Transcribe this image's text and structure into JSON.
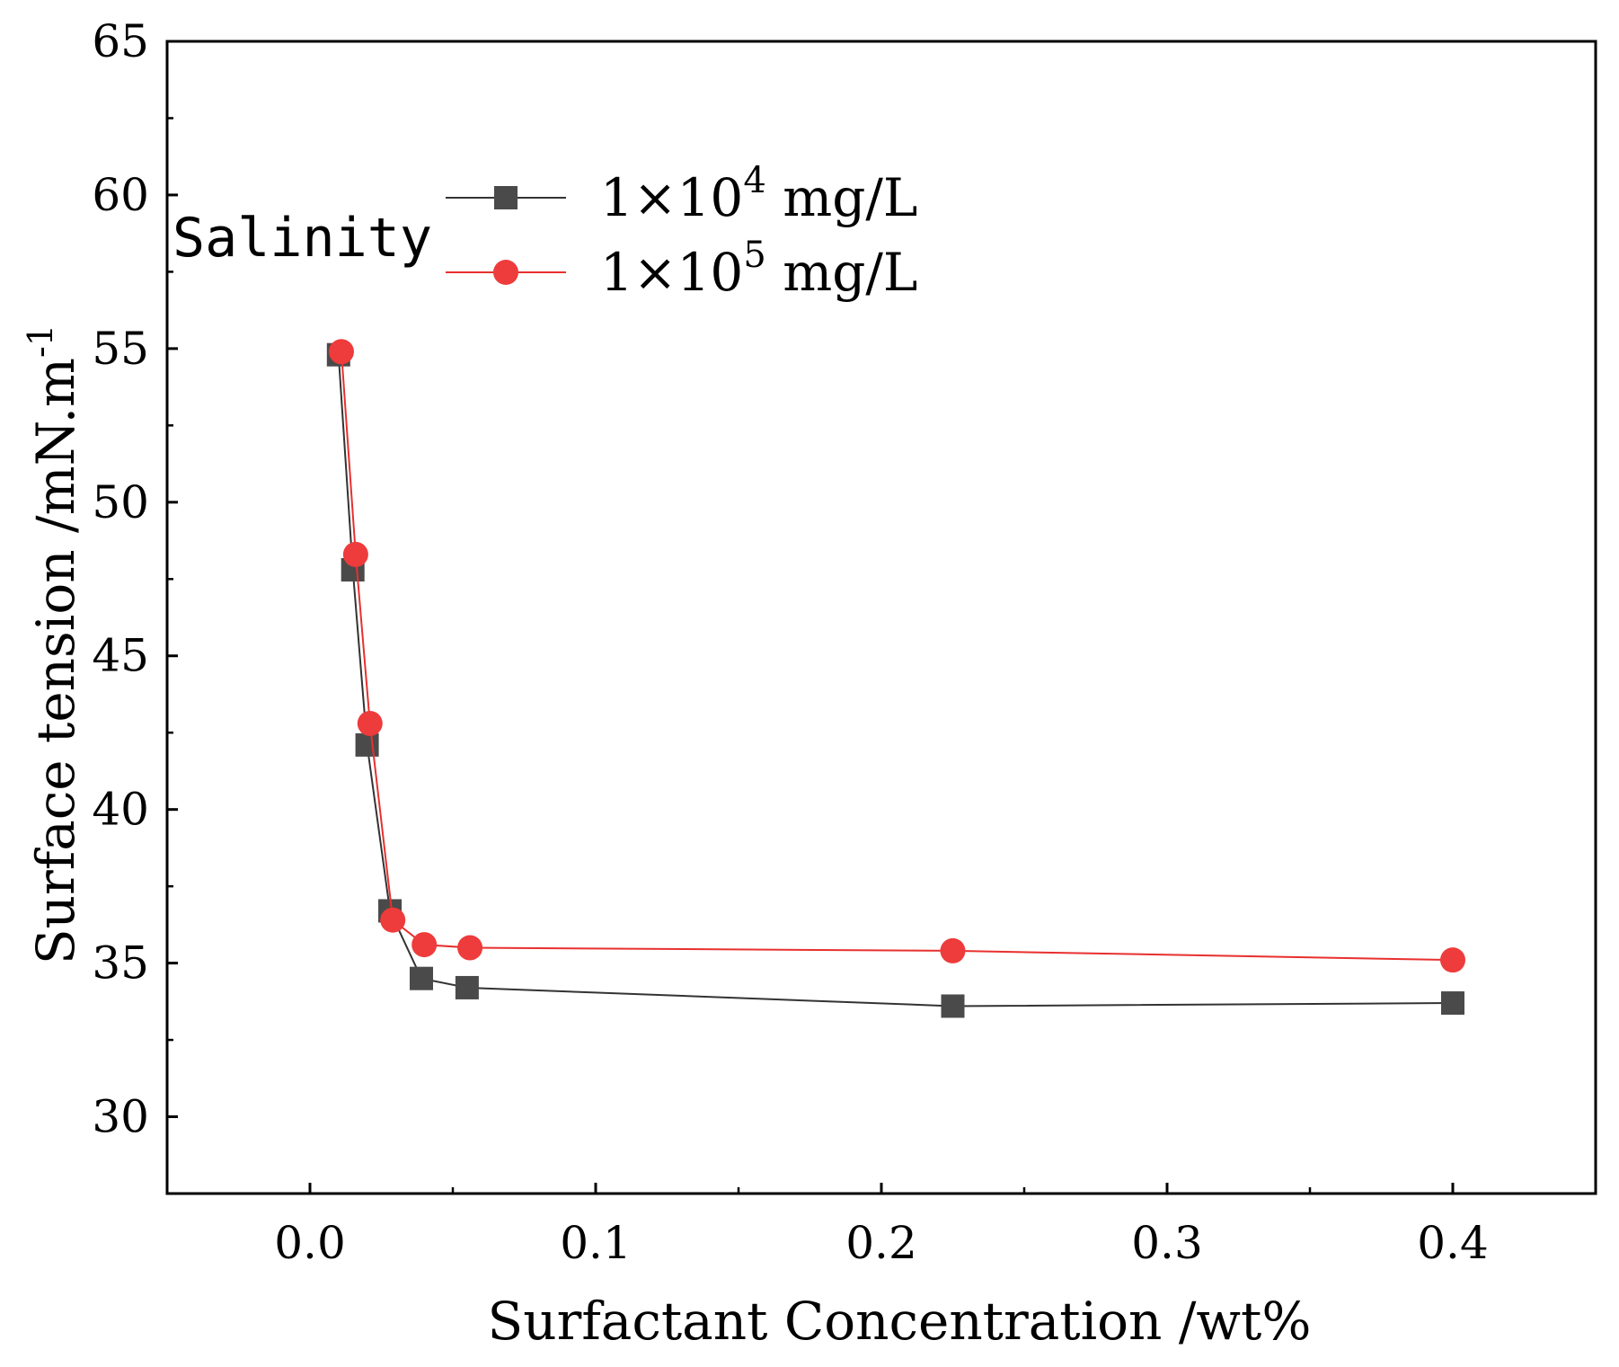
{
  "chart_data": {
    "type": "line",
    "title": "",
    "xlabel": "Surfactant Concentration /wt%",
    "ylabel": "Surface tension /mN.m",
    "ylabel_superscript": "-1",
    "xlim": [
      -0.05,
      0.45
    ],
    "ylim": [
      27.5,
      65
    ],
    "x_ticks": [
      0.0,
      0.1,
      0.2,
      0.3,
      0.4
    ],
    "x_tick_labels": [
      "0.0",
      "0.1",
      "0.2",
      "0.3",
      "0.4"
    ],
    "x_minor_ticks": [
      0.05,
      0.15,
      0.25,
      0.35
    ],
    "y_ticks": [
      30,
      35,
      40,
      45,
      50,
      55,
      60,
      65
    ],
    "y_tick_labels": [
      "30",
      "35",
      "40",
      "45",
      "50",
      "55",
      "60",
      "65"
    ],
    "y_minor_ticks": [
      32.5,
      37.5,
      42.5,
      47.5,
      52.5,
      57.5,
      62.5
    ],
    "grid": false,
    "legend": {
      "title": "Salinity",
      "position": "top-left",
      "entries": [
        {
          "prefix": "1×10",
          "superscript": "4",
          "suffix": " mg/L"
        },
        {
          "prefix": "1×10",
          "superscript": "5",
          "suffix": " mg/L"
        }
      ]
    },
    "series": [
      {
        "name": "1×10^4 mg/L",
        "marker": "square",
        "color": "#4a4a4a",
        "line_color": "#333333",
        "points": [
          {
            "x": 0.01,
            "y": 54.8
          },
          {
            "x": 0.015,
            "y": 47.8
          },
          {
            "x": 0.02,
            "y": 42.1
          },
          {
            "x": 0.028,
            "y": 36.7
          },
          {
            "x": 0.039,
            "y": 34.5
          },
          {
            "x": 0.055,
            "y": 34.2
          },
          {
            "x": 0.225,
            "y": 33.6
          },
          {
            "x": 0.4,
            "y": 33.7
          }
        ]
      },
      {
        "name": "1×10^5 mg/L",
        "marker": "circle",
        "color": "#ee3b3b",
        "line_color": "#e8302f",
        "points": [
          {
            "x": 0.011,
            "y": 54.9
          },
          {
            "x": 0.016,
            "y": 48.3
          },
          {
            "x": 0.021,
            "y": 42.8
          },
          {
            "x": 0.029,
            "y": 36.4
          },
          {
            "x": 0.04,
            "y": 35.6
          },
          {
            "x": 0.056,
            "y": 35.5
          },
          {
            "x": 0.225,
            "y": 35.4
          },
          {
            "x": 0.4,
            "y": 35.1
          }
        ]
      }
    ]
  }
}
